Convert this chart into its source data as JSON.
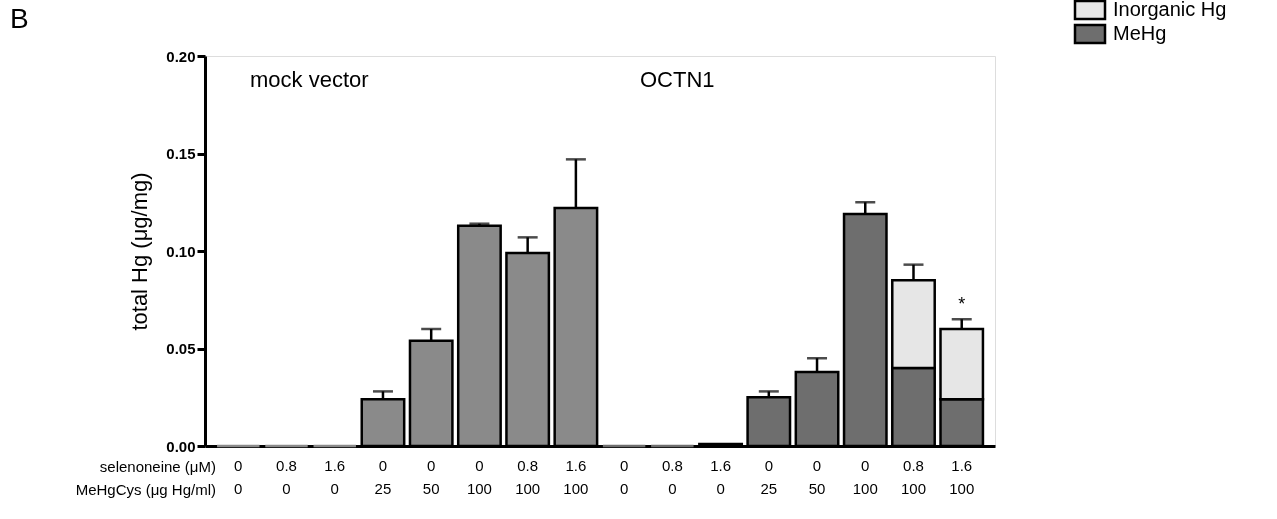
{
  "chart_data": {
    "type": "bar",
    "stacked": true,
    "categories": [
      "0\n0",
      "0.8\n0",
      "1.6\n0",
      "0\n25",
      "0\n50",
      "0\n100",
      "0.8\n100",
      "1.6\n100",
      "0\n0",
      "0.8\n0",
      "1.6\n0",
      "0\n25",
      "0\n50",
      "0\n100",
      "0.8\n100",
      "1.6\n100"
    ],
    "series": [
      {
        "name": "MeHg",
        "color": "#6e6e6e",
        "colors": [
          "#8a8a8a",
          "#8a8a8a",
          "#8a8a8a",
          "#8a8a8a",
          "#8a8a8a",
          "#8a8a8a",
          "#8a8a8a",
          "#8a8a8a",
          "#6e6e6e",
          "#6e6e6e",
          "#6e6e6e",
          "#6e6e6e",
          "#6e6e6e",
          "#6e6e6e",
          "#6e6e6e",
          "#6e6e6e"
        ],
        "values": [
          0,
          0,
          0,
          0.024,
          0.054,
          0.113,
          0.099,
          0.122,
          0,
          0,
          0.001,
          0.025,
          0.038,
          0.119,
          0.04,
          0.024
        ],
        "errors": [
          null,
          null,
          null,
          0.004,
          0.006,
          0.001,
          0.008,
          0.025,
          null,
          null,
          null,
          0.003,
          0.007,
          0.006,
          null,
          null
        ]
      },
      {
        "name": "Inorganic Hg",
        "color": "#e6e6e6",
        "values": [
          null,
          null,
          null,
          null,
          null,
          null,
          null,
          null,
          null,
          null,
          null,
          null,
          null,
          null,
          0.045,
          0.036
        ],
        "errors": [
          null,
          null,
          null,
          null,
          null,
          null,
          null,
          null,
          null,
          null,
          null,
          null,
          null,
          null,
          0.008,
          0.005
        ]
      }
    ],
    "ylabel": "total Hg (μg/mg)",
    "ylim": [
      0,
      0.2
    ],
    "yticks": [
      {
        "value": 0,
        "label": "0.00"
      },
      {
        "value": 0.05,
        "label": "0.05"
      },
      {
        "value": 0.1,
        "label": "0.10"
      },
      {
        "value": 0.15,
        "label": "0.15"
      },
      {
        "value": 0.2,
        "label": "0.20"
      }
    ],
    "annotations": [
      "B",
      "mock vector",
      "OCTN1",
      "*",
      "selenoneine (μM)",
      "MeHgCys (μg Hg/ml)"
    ],
    "legend": "top right",
    "grid": false
  }
}
